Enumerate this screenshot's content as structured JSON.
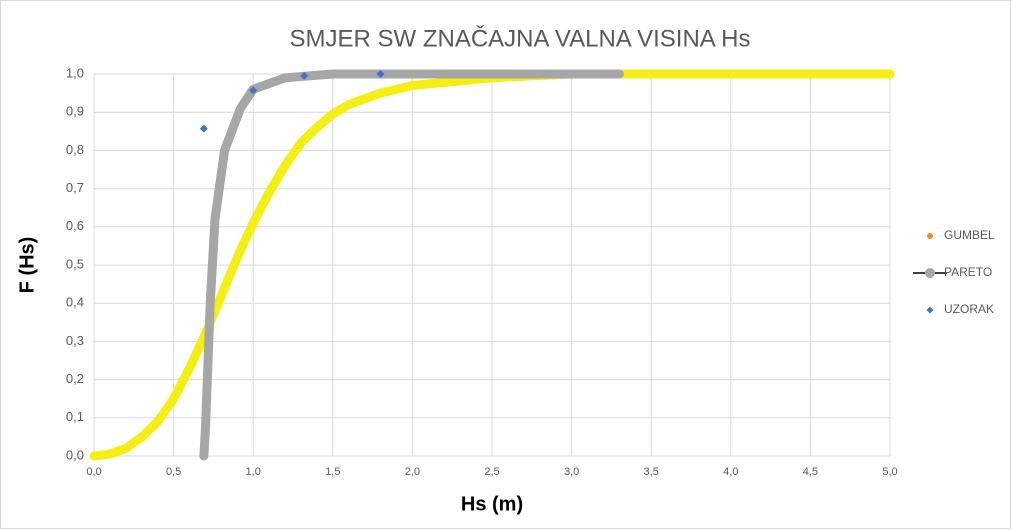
{
  "chart_data": {
    "type": "scatter",
    "title": "SMJER SW ZNAČAJNA VALNA VISINA Hs",
    "xlabel": "Hs (m)",
    "ylabel": "F (Hs)",
    "xlim": [
      0,
      5
    ],
    "ylim": [
      0,
      1
    ],
    "xticks": [
      {
        "value": 0,
        "label": "0,0"
      },
      {
        "value": 0.5,
        "label": "0,5"
      },
      {
        "value": 1,
        "label": "1,0"
      },
      {
        "value": 1.5,
        "label": "1,5"
      },
      {
        "value": 2,
        "label": "2,0"
      },
      {
        "value": 2.5,
        "label": "2,5"
      },
      {
        "value": 3,
        "label": "3,0"
      },
      {
        "value": 3.5,
        "label": "3,5"
      },
      {
        "value": 4,
        "label": "4,0"
      },
      {
        "value": 4.5,
        "label": "4,5"
      },
      {
        "value": 5,
        "label": "5,0"
      }
    ],
    "yticks": [
      {
        "value": 0,
        "label": "0,0"
      },
      {
        "value": 0.1,
        "label": "0,1"
      },
      {
        "value": 0.2,
        "label": "0,2"
      },
      {
        "value": 0.3,
        "label": "0,3"
      },
      {
        "value": 0.4,
        "label": "0,4"
      },
      {
        "value": 0.5,
        "label": "0,5"
      },
      {
        "value": 0.6,
        "label": "0,6"
      },
      {
        "value": 0.7,
        "label": "0,7"
      },
      {
        "value": 0.8,
        "label": "0,8"
      },
      {
        "value": 0.9,
        "label": "0,9"
      },
      {
        "value": 1,
        "label": "1,0"
      }
    ],
    "grid": true,
    "legend": "right",
    "series": [
      {
        "name": "GUMBEL",
        "style": "line",
        "color": "#f5ee14",
        "marker_color": "#e8901c",
        "x": [
          0,
          0.1,
          0.2,
          0.3,
          0.4,
          0.5,
          0.6,
          0.7,
          0.8,
          0.9,
          1.0,
          1.1,
          1.2,
          1.3,
          1.4,
          1.5,
          1.6,
          1.8,
          2.0,
          2.5,
          3.0,
          5.0
        ],
        "values": [
          0.0,
          0.005,
          0.02,
          0.05,
          0.09,
          0.15,
          0.23,
          0.32,
          0.42,
          0.52,
          0.61,
          0.69,
          0.76,
          0.82,
          0.86,
          0.895,
          0.92,
          0.95,
          0.97,
          0.99,
          1.0,
          1.0
        ]
      },
      {
        "name": "PARETO",
        "style": "line",
        "color": "#a6a6a6",
        "x": [
          0.69,
          0.7,
          0.73,
          0.76,
          0.82,
          0.92,
          1.0,
          1.2,
          1.5,
          3.3
        ],
        "values": [
          0.0,
          0.07,
          0.4,
          0.62,
          0.8,
          0.91,
          0.96,
          0.99,
          1.0,
          1.0
        ]
      },
      {
        "name": "UZORAK",
        "style": "marker",
        "color": "#4472c4",
        "x": [
          0.69,
          1.0,
          1.32,
          1.8
        ],
        "values": [
          0.857,
          0.957,
          0.995,
          1.0
        ]
      }
    ]
  }
}
